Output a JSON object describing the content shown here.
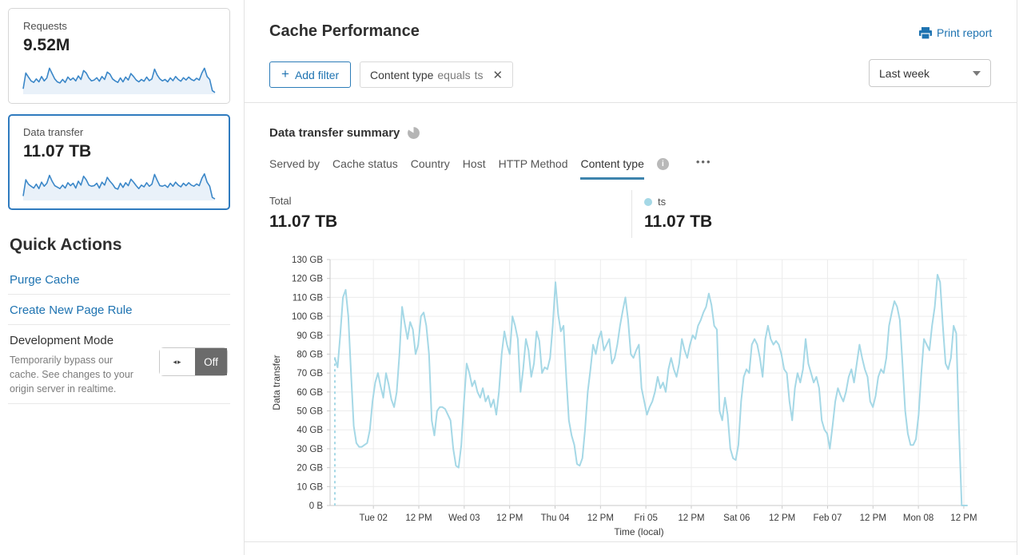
{
  "sidebar": {
    "cards": [
      {
        "label": "Requests",
        "value": "9.52M"
      },
      {
        "label": "Data transfer",
        "value": "11.07 TB"
      }
    ],
    "sparklines": {
      "requests": [
        18,
        72,
        58,
        45,
        40,
        52,
        42,
        60,
        45,
        55,
        88,
        70,
        52,
        42,
        38,
        50,
        40,
        58,
        48,
        55,
        45,
        62,
        50,
        80,
        72,
        55,
        45,
        48,
        56,
        44,
        60,
        50,
        75,
        68,
        52,
        45,
        40,
        55,
        42,
        58,
        48,
        70,
        60,
        48,
        42,
        50,
        44,
        58,
        46,
        52,
        85,
        65,
        52,
        45,
        50,
        42,
        55,
        46,
        60,
        50,
        44,
        56,
        48,
        58,
        50,
        46,
        54,
        48,
        72,
        88,
        60,
        50,
        12,
        6
      ],
      "data_transfer": [
        15,
        70,
        55,
        48,
        42,
        55,
        40,
        62,
        48,
        58,
        85,
        65,
        50,
        45,
        40,
        52,
        42,
        60,
        50,
        58,
        42,
        65,
        52,
        82,
        70,
        52,
        48,
        50,
        58,
        42,
        62,
        52,
        78,
        65,
        55,
        42,
        38,
        58,
        44,
        60,
        50,
        72,
        62,
        50,
        40,
        52,
        46,
        60,
        48,
        55,
        88,
        68,
        50,
        48,
        52,
        44,
        58,
        48,
        62,
        52,
        46,
        58,
        50,
        60,
        52,
        48,
        56,
        50,
        75,
        90,
        62,
        48,
        10,
        5
      ]
    },
    "quick_actions": {
      "title": "Quick Actions",
      "links": [
        "Purge Cache",
        "Create New Page Rule"
      ],
      "dev_mode": {
        "title": "Development Mode",
        "description": "Temporarily bypass our cache. See changes to your origin server in realtime.",
        "toggle_icon": "◂▸",
        "toggle_label": "Off"
      }
    }
  },
  "header": {
    "title": "Cache Performance",
    "print_label": "Print report",
    "add_filter": {
      "icon": "+",
      "label": "Add filter"
    },
    "filter_chip": {
      "field": "Content type",
      "operator": "equals",
      "value": "ts",
      "close_icon": "✕"
    },
    "time_range": "Last week"
  },
  "summary": {
    "title": "Data transfer summary",
    "tabs": [
      "Served by",
      "Cache status",
      "Country",
      "Host",
      "HTTP Method",
      "Content type"
    ],
    "active_tab": "Content type",
    "more_icon": "•••",
    "total": {
      "label": "Total",
      "value": "11.07 TB"
    },
    "series_stat": {
      "label": "ts",
      "value": "11.07 TB"
    }
  },
  "chart_data": {
    "type": "line",
    "title": "Data transfer summary",
    "xlabel": "Time (local)",
    "ylabel": "Data transfer",
    "ylim": [
      0,
      130
    ],
    "grid": true,
    "line_color": "#a5d8e6",
    "start_marker_dashed": true,
    "y_ticks": [
      {
        "value": 0,
        "label": "0 B"
      },
      {
        "value": 10,
        "label": "10 GB"
      },
      {
        "value": 20,
        "label": "20 GB"
      },
      {
        "value": 30,
        "label": "30 GB"
      },
      {
        "value": 40,
        "label": "40 GB"
      },
      {
        "value": 50,
        "label": "50 GB"
      },
      {
        "value": 60,
        "label": "60 GB"
      },
      {
        "value": 70,
        "label": "70 GB"
      },
      {
        "value": 80,
        "label": "80 GB"
      },
      {
        "value": 90,
        "label": "90 GB"
      },
      {
        "value": 100,
        "label": "100 GB"
      },
      {
        "value": 110,
        "label": "110 GB"
      },
      {
        "value": 120,
        "label": "120 GB"
      },
      {
        "value": 130,
        "label": "130 GB"
      }
    ],
    "x_ticks": [
      "Tue 02",
      "12 PM",
      "Wed 03",
      "12 PM",
      "Thu 04",
      "12 PM",
      "Fri 05",
      "12 PM",
      "Sat 06",
      "12 PM",
      "Feb 07",
      "12 PM",
      "Mon 08",
      "12 PM"
    ],
    "x_tick_first_frac": 0.068,
    "x_tick_step_frac": 0.0713,
    "series": [
      {
        "name": "ts",
        "values": [
          78,
          73,
          90,
          110,
          114,
          100,
          70,
          42,
          33,
          31,
          31,
          32,
          33,
          40,
          55,
          65,
          70,
          63,
          57,
          70,
          64,
          56,
          52,
          60,
          80,
          105,
          96,
          88,
          97,
          93,
          80,
          85,
          100,
          102,
          95,
          80,
          45,
          37,
          50,
          52,
          52,
          51,
          48,
          45,
          30,
          21,
          20,
          32,
          55,
          75,
          70,
          63,
          66,
          60,
          57,
          62,
          55,
          58,
          52,
          56,
          48,
          60,
          80,
          92,
          85,
          80,
          100,
          95,
          88,
          60,
          72,
          88,
          82,
          68,
          75,
          92,
          87,
          70,
          73,
          72,
          78,
          95,
          118,
          101,
          92,
          95,
          68,
          45,
          37,
          32,
          22,
          21,
          25,
          40,
          60,
          72,
          85,
          80,
          88,
          92,
          82,
          85,
          88,
          75,
          78,
          85,
          95,
          103,
          110,
          98,
          80,
          78,
          82,
          85,
          62,
          55,
          48,
          52,
          55,
          60,
          68,
          62,
          65,
          60,
          72,
          78,
          72,
          68,
          75,
          88,
          82,
          78,
          85,
          90,
          88,
          95,
          98,
          102,
          105,
          112,
          106,
          95,
          93,
          50,
          45,
          57,
          48,
          30,
          25,
          24,
          32,
          55,
          68,
          72,
          70,
          85,
          88,
          85,
          78,
          68,
          88,
          95,
          88,
          85,
          87,
          85,
          80,
          72,
          70,
          55,
          45,
          62,
          70,
          65,
          72,
          88,
          75,
          70,
          65,
          68,
          62,
          45,
          40,
          38,
          30,
          42,
          55,
          62,
          58,
          55,
          60,
          68,
          72,
          65,
          75,
          85,
          78,
          72,
          68,
          55,
          52,
          58,
          68,
          72,
          70,
          78,
          95,
          102,
          108,
          105,
          98,
          75,
          50,
          38,
          32,
          32,
          35,
          48,
          70,
          88,
          85,
          82,
          95,
          105,
          122,
          118,
          95,
          75,
          72,
          78,
          95,
          91,
          40,
          0,
          0,
          0
        ]
      }
    ]
  }
}
